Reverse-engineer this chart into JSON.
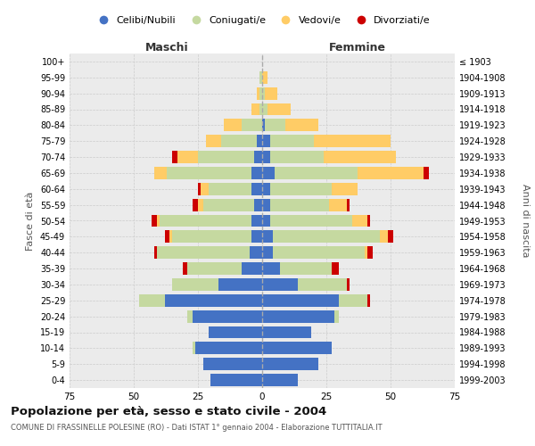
{
  "title": "Popolazione per età, sesso e stato civile - 2004",
  "subtitle": "COMUNE DI FRASSINELLE POLESINE (RO) - Dati ISTAT 1° gennaio 2004 - Elaborazione TUTTITALIA.IT",
  "xlabel_left": "Maschi",
  "xlabel_right": "Femmine",
  "ylabel_left": "Fasce di età",
  "ylabel_right": "Anni di nascita",
  "age_groups": [
    "0-4",
    "5-9",
    "10-14",
    "15-19",
    "20-24",
    "25-29",
    "30-34",
    "35-39",
    "40-44",
    "45-49",
    "50-54",
    "55-59",
    "60-64",
    "65-69",
    "70-74",
    "75-79",
    "80-84",
    "85-89",
    "90-94",
    "95-99",
    "100+"
  ],
  "birth_years": [
    "1999-2003",
    "1994-1998",
    "1989-1993",
    "1984-1988",
    "1979-1983",
    "1974-1978",
    "1969-1973",
    "1964-1968",
    "1959-1963",
    "1954-1958",
    "1949-1953",
    "1944-1948",
    "1939-1943",
    "1934-1938",
    "1929-1933",
    "1924-1928",
    "1919-1923",
    "1914-1918",
    "1909-1913",
    "1904-1908",
    "≤ 1903"
  ],
  "colors": {
    "celibi": "#4472C4",
    "coniugati": "#C5D9A0",
    "vedovi": "#FFCC66",
    "divorziati": "#CC0000",
    "background": "#EBEBEB",
    "grid": "#CCCCCC"
  },
  "legend_labels": [
    "Celibi/Nubili",
    "Coniugati/e",
    "Vedovi/e",
    "Divorziati/e"
  ],
  "males": {
    "celibi": [
      20,
      23,
      26,
      21,
      27,
      38,
      17,
      8,
      5,
      4,
      4,
      3,
      4,
      4,
      3,
      2,
      0,
      0,
      0,
      0,
      0
    ],
    "coniugati": [
      0,
      0,
      1,
      0,
      2,
      10,
      18,
      21,
      36,
      31,
      36,
      20,
      17,
      33,
      22,
      14,
      8,
      1,
      1,
      1,
      0
    ],
    "vedovi": [
      0,
      0,
      0,
      0,
      0,
      0,
      0,
      0,
      0,
      1,
      1,
      2,
      3,
      5,
      8,
      6,
      7,
      3,
      1,
      0,
      0
    ],
    "divorziati": [
      0,
      0,
      0,
      0,
      0,
      0,
      0,
      2,
      1,
      2,
      2,
      2,
      1,
      0,
      2,
      0,
      0,
      0,
      0,
      0,
      0
    ]
  },
  "females": {
    "nubili": [
      14,
      22,
      27,
      19,
      28,
      30,
      14,
      7,
      4,
      4,
      3,
      3,
      3,
      5,
      3,
      3,
      1,
      0,
      0,
      0,
      0
    ],
    "coniugate": [
      0,
      0,
      0,
      0,
      2,
      11,
      19,
      20,
      36,
      42,
      32,
      23,
      24,
      32,
      21,
      17,
      8,
      2,
      1,
      0,
      0
    ],
    "vedove": [
      0,
      0,
      0,
      0,
      0,
      0,
      0,
      0,
      1,
      3,
      6,
      7,
      10,
      26,
      28,
      30,
      13,
      9,
      5,
      2,
      0
    ],
    "divorziate": [
      0,
      0,
      0,
      0,
      0,
      1,
      1,
      3,
      2,
      2,
      1,
      1,
      0,
      2,
      0,
      0,
      0,
      0,
      0,
      0,
      0
    ]
  },
  "xlim": 75
}
